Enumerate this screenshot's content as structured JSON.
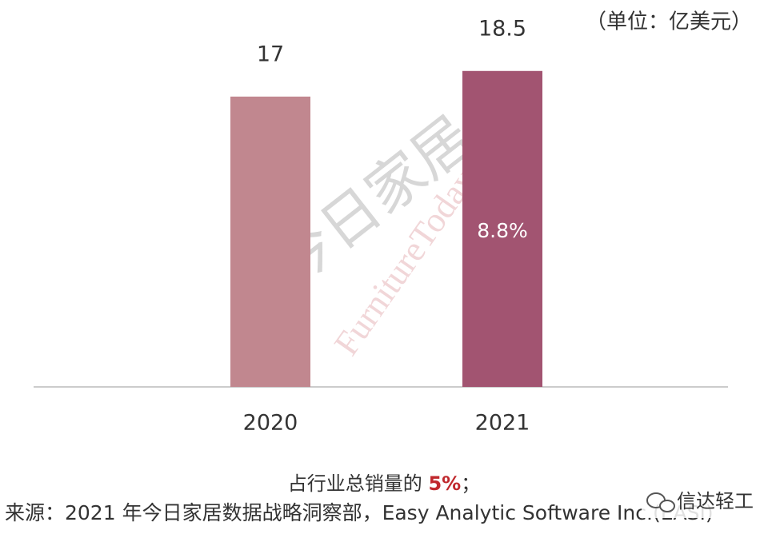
{
  "chart_data": {
    "type": "bar",
    "unit_label": "（单位：亿美元）",
    "categories": [
      "2020",
      "2021"
    ],
    "values": [
      17,
      18.5
    ],
    "colors": [
      "#c1878f",
      "#a25471"
    ],
    "ylim": [
      0,
      22
    ],
    "bar_annotation": "8.8%",
    "watermark": [
      "今日家居",
      "FurnitureToday"
    ],
    "note_parts": [
      "占行业总销量的 ",
      "5%",
      "；"
    ],
    "source": "来源：2021 年今日家居数据战略洞察部，Easy Analytic Software Inc.(EASI)",
    "logo_text": "信达轻工"
  }
}
